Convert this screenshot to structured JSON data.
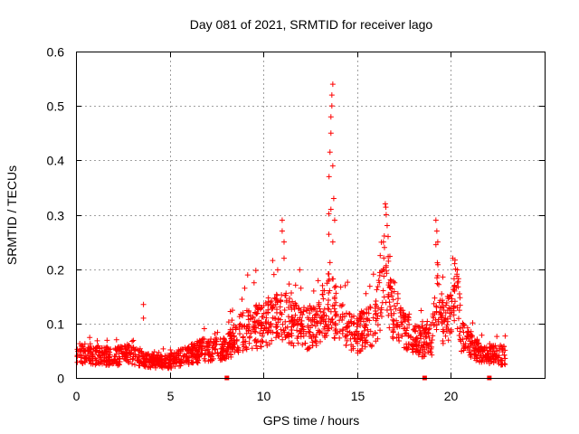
{
  "chart_data": {
    "type": "scatter",
    "title": "Day 081 of 2021, SRMTID for receiver lago",
    "xlabel": "GPS time / hours",
    "ylabel": "SRMTID / TECUs",
    "xlim": [
      0,
      25
    ],
    "ylim": [
      0,
      0.6
    ],
    "xticks": [
      0,
      5,
      10,
      15,
      20
    ],
    "xtick_labels": [
      "0",
      "5",
      "10",
      "15",
      "20"
    ],
    "yticks": [
      0,
      0.1,
      0.2,
      0.3,
      0.4,
      0.5,
      0.6
    ],
    "ytick_labels": [
      "0",
      "0.1",
      "0.2",
      "0.3",
      "0.4",
      "0.5",
      "0.6"
    ],
    "grid": true,
    "marker": "plus",
    "color": "#ff0000",
    "series": [
      {
        "name": "SRMTID",
        "x_start": 0.0,
        "x_end": 22.9,
        "profile": {
          "x": [
            0.0,
            0.5,
            1.0,
            2.0,
            3.0,
            4.0,
            4.5,
            5.0,
            6.0,
            7.0,
            8.0,
            8.5,
            9.0,
            9.5,
            10.0,
            10.5,
            11.0,
            11.5,
            12.0,
            12.5,
            13.0,
            13.3,
            13.5,
            13.7,
            14.0,
            14.5,
            15.0,
            15.5,
            16.0,
            16.3,
            16.5,
            16.8,
            17.0,
            17.5,
            18.0,
            18.5,
            19.0,
            19.3,
            19.6,
            20.0,
            20.3,
            20.6,
            21.0,
            21.5,
            22.0,
            22.5,
            22.9
          ],
          "y": [
            0.035,
            0.045,
            0.04,
            0.038,
            0.04,
            0.03,
            0.028,
            0.03,
            0.04,
            0.05,
            0.05,
            0.07,
            0.085,
            0.09,
            0.09,
            0.1,
            0.11,
            0.1,
            0.085,
            0.09,
            0.095,
            0.12,
            0.15,
            0.13,
            0.1,
            0.08,
            0.075,
            0.09,
            0.1,
            0.15,
            0.2,
            0.12,
            0.12,
            0.08,
            0.07,
            0.065,
            0.07,
            0.15,
            0.09,
            0.11,
            0.16,
            0.07,
            0.06,
            0.045,
            0.04,
            0.04,
            0.04
          ]
        },
        "extreme_points": [
          {
            "x": 3.6,
            "y": 0.135
          },
          {
            "x": 3.6,
            "y": 0.11
          },
          {
            "x": 11.0,
            "y": 0.29
          },
          {
            "x": 11.0,
            "y": 0.27
          },
          {
            "x": 11.1,
            "y": 0.25
          },
          {
            "x": 11.1,
            "y": 0.22
          },
          {
            "x": 13.5,
            "y": 0.37
          },
          {
            "x": 13.55,
            "y": 0.415
          },
          {
            "x": 13.6,
            "y": 0.45
          },
          {
            "x": 13.6,
            "y": 0.48
          },
          {
            "x": 13.65,
            "y": 0.5
          },
          {
            "x": 13.65,
            "y": 0.52
          },
          {
            "x": 13.7,
            "y": 0.54
          },
          {
            "x": 13.7,
            "y": 0.39
          },
          {
            "x": 13.75,
            "y": 0.33
          },
          {
            "x": 13.6,
            "y": 0.31
          },
          {
            "x": 13.8,
            "y": 0.29
          },
          {
            "x": 13.7,
            "y": 0.25
          },
          {
            "x": 16.5,
            "y": 0.32
          },
          {
            "x": 16.55,
            "y": 0.3
          },
          {
            "x": 16.6,
            "y": 0.28
          },
          {
            "x": 16.65,
            "y": 0.26
          },
          {
            "x": 16.4,
            "y": 0.25
          },
          {
            "x": 19.2,
            "y": 0.29
          },
          {
            "x": 19.25,
            "y": 0.27
          },
          {
            "x": 19.3,
            "y": 0.25
          },
          {
            "x": 19.2,
            "y": 0.245
          },
          {
            "x": 20.1,
            "y": 0.22
          },
          {
            "x": 20.2,
            "y": 0.21
          },
          {
            "x": 20.25,
            "y": 0.2
          },
          {
            "x": 9.5,
            "y": 0.175
          },
          {
            "x": 9.0,
            "y": 0.165
          },
          {
            "x": 12.0,
            "y": 0.165
          },
          {
            "x": 17.0,
            "y": 0.175
          }
        ]
      }
    ],
    "baseline_markers_x": [
      8.05,
      18.6,
      22.05
    ]
  }
}
